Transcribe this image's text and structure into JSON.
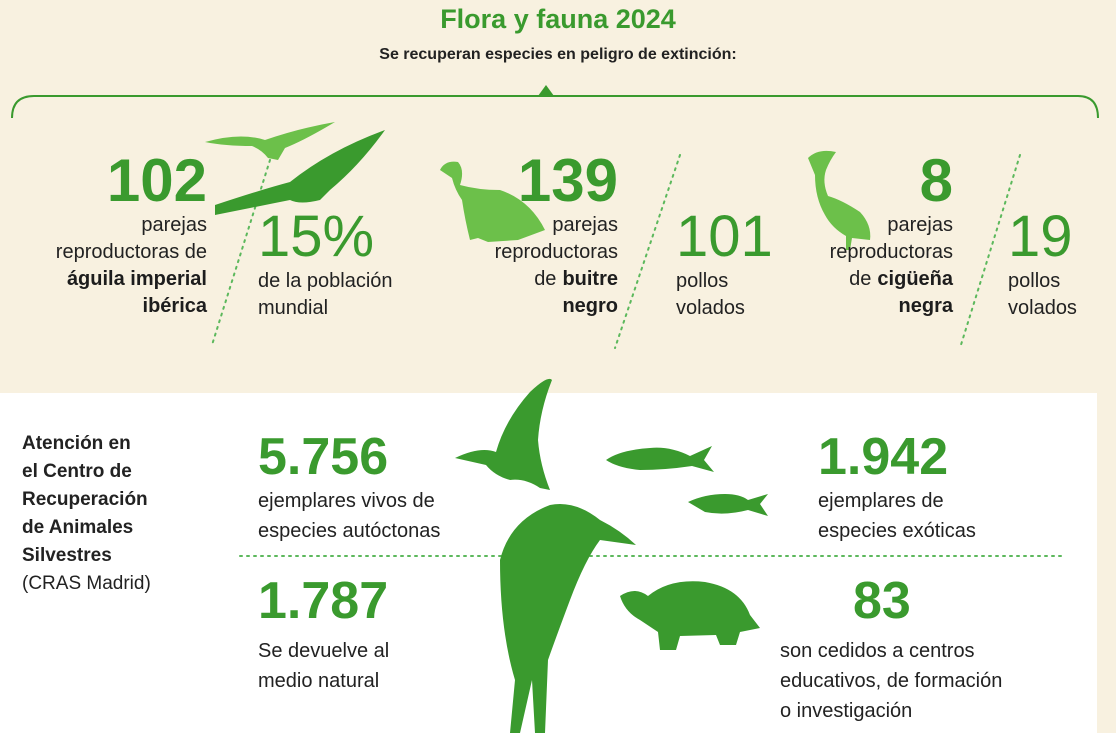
{
  "header": {
    "title": "Flora y fauna 2024",
    "subtitle": "Se recuperan especies en peligro de extinción:"
  },
  "top_stats": [
    {
      "number": "102",
      "lines": [
        {
          "regular": "parejas"
        },
        {
          "regular": "reproductoras de"
        },
        {
          "bold": "águila imperial"
        },
        {
          "bold": "ibérica"
        }
      ]
    },
    {
      "number": "15%",
      "lines": [
        {
          "regular": "de la población"
        },
        {
          "regular": "mundial"
        }
      ]
    },
    {
      "number": "139",
      "lines": [
        {
          "regular": "parejas"
        },
        {
          "regular": "reproductoras"
        },
        {
          "regular": "de",
          "bold": "buitre"
        },
        {
          "bold": "negro"
        }
      ]
    },
    {
      "number": "101",
      "lines": [
        {
          "regular": "pollos"
        },
        {
          "regular": "volados"
        }
      ]
    },
    {
      "number": "8",
      "lines": [
        {
          "regular": "parejas"
        },
        {
          "regular": "reproductoras"
        },
        {
          "regular": "de",
          "bold": "cigüeña"
        },
        {
          "bold": "negra"
        }
      ]
    },
    {
      "number": "19",
      "lines": [
        {
          "regular": "pollos"
        },
        {
          "regular": "volados"
        }
      ]
    }
  ],
  "cras": {
    "heading": [
      "Atención en",
      "el Centro de",
      "Recuperación",
      "de Animales",
      "Silvestres"
    ],
    "note": "(CRAS Madrid)",
    "stats": [
      {
        "number": "5.756",
        "lines": [
          "ejemplares vivos de",
          "especies autóctonas"
        ]
      },
      {
        "number": "1.942",
        "lines": [
          "ejemplares de",
          "especies exóticas"
        ]
      },
      {
        "number": "1.787",
        "lines": [
          "Se devuelve al",
          "medio natural"
        ]
      },
      {
        "number": "83",
        "lines": [
          "son cedidos a centros",
          "educativos, de formación",
          "o investigación"
        ]
      }
    ]
  }
}
